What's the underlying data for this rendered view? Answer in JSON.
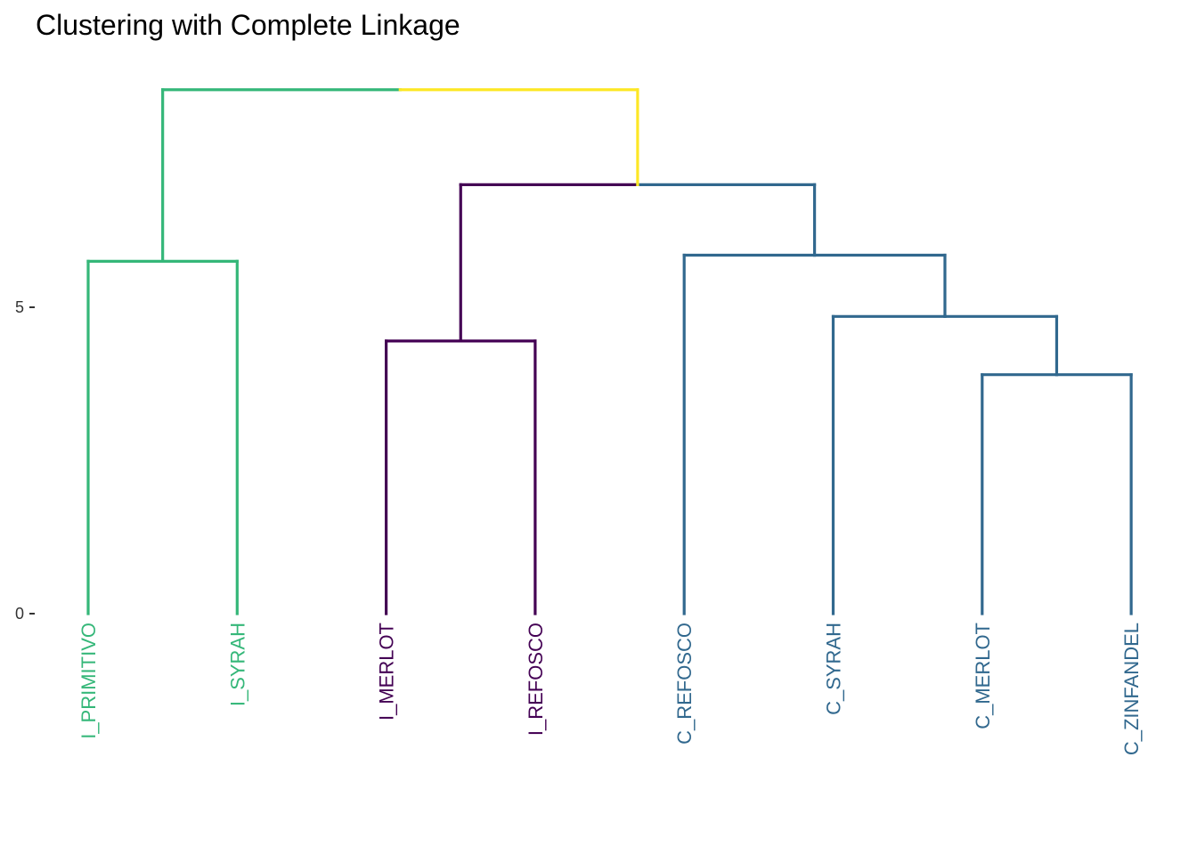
{
  "chart_data": {
    "type": "dendrogram",
    "title": "Clustering with Complete Linkage",
    "xlabel": "",
    "ylabel": "",
    "y_ticks": [
      0,
      5
    ],
    "ylim": [
      0,
      8.5
    ],
    "grid": false,
    "colors": {
      "green": "#35b779",
      "purple": "#440154",
      "blue": "#31688e",
      "yellow": "#fde725"
    },
    "leaves": [
      {
        "label": "I_PRIMITIVO",
        "color": "green"
      },
      {
        "label": "I_SYRAH",
        "color": "green"
      },
      {
        "label": "I_MERLOT",
        "color": "purple"
      },
      {
        "label": "I_REFOSCO",
        "color": "purple"
      },
      {
        "label": "C_REFOSCO",
        "color": "blue"
      },
      {
        "label": "C_SYRAH",
        "color": "blue"
      },
      {
        "label": "C_MERLOT",
        "color": "blue"
      },
      {
        "label": "C_ZINFANDEL",
        "color": "blue"
      }
    ],
    "merges": [
      {
        "id": "m1",
        "left": "I_MERLOT",
        "right": "I_REFOSCO",
        "height": 4.45,
        "color": "purple"
      },
      {
        "id": "m2",
        "left": "I_PRIMITIVO",
        "right": "I_SYRAH",
        "height": 5.75,
        "color": "green"
      },
      {
        "id": "m3",
        "left": "C_MERLOT",
        "right": "C_ZINFANDEL",
        "height": 3.9,
        "color": "blue"
      },
      {
        "id": "m4",
        "left": "C_SYRAH",
        "right": "m3",
        "height": 4.85,
        "color": "blue"
      },
      {
        "id": "m5",
        "left": "C_REFOSCO",
        "right": "m4",
        "height": 5.85,
        "color": "blue"
      },
      {
        "id": "m6",
        "left": "m1",
        "right": "m5",
        "height": 7.0,
        "left_color": "purple",
        "right_color": "blue"
      },
      {
        "id": "m7",
        "left": "m2",
        "right": "m6",
        "height": 8.55,
        "left_color": "green",
        "right_color": "yellow"
      }
    ]
  }
}
